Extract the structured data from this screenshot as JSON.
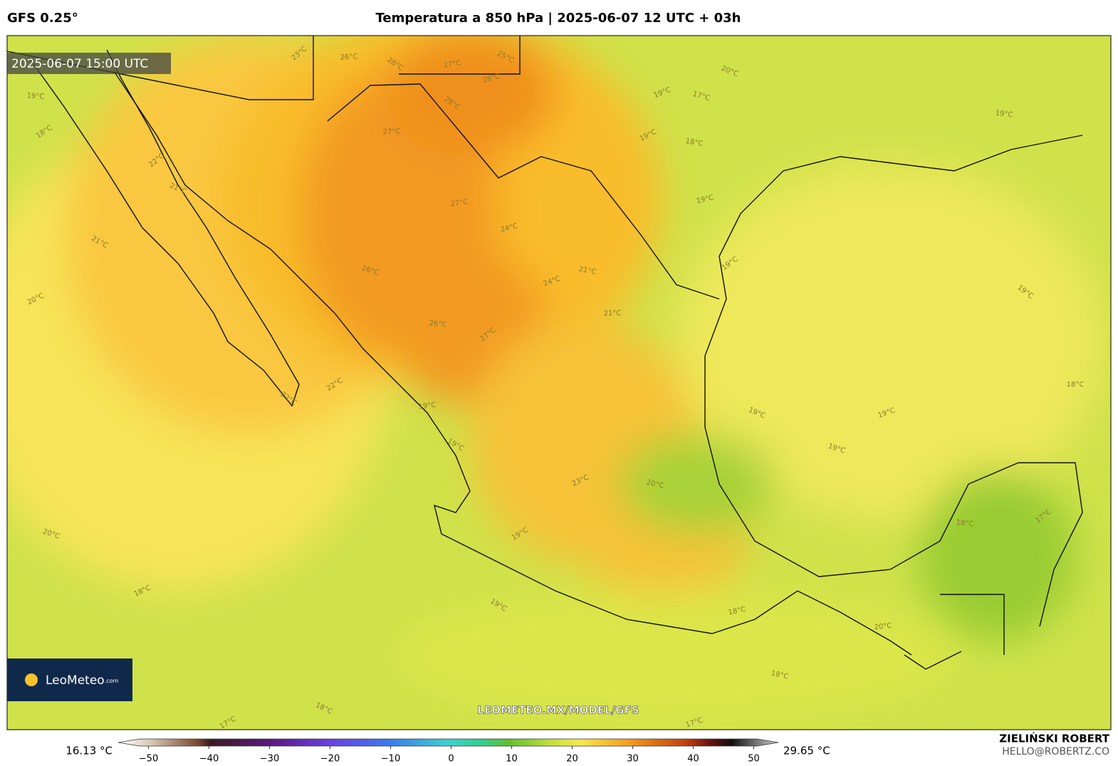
{
  "header": {
    "model": "GFS 0.25°",
    "title": "Temperatura a 850 hPa | 2025-06-07 12 UTC + 03h"
  },
  "map": {
    "valid_time": "2025-06-07 15:00 UTC",
    "watermark": "LEOMETEO.MX/MODEL/GFS",
    "contour_labels": [
      "23°C",
      "26°C",
      "28°C",
      "27°C",
      "25°C",
      "28°C",
      "20°C",
      "19°C",
      "17°C",
      "19°C",
      "18°C",
      "18°C",
      "19°C",
      "22°C",
      "27°C",
      "28°C",
      "27°C",
      "21°C",
      "24°C",
      "21°C",
      "24°C",
      "26°C",
      "20°C",
      "21°C",
      "22°C",
      "26°C",
      "27°C",
      "21°C",
      "22°C",
      "19°C",
      "19°C",
      "19°C",
      "19°C",
      "19°C",
      "19°C",
      "23°C",
      "20°C",
      "19°C",
      "18°C",
      "17°C",
      "18°C",
      "19°C",
      "20°C",
      "19°C",
      "18°C",
      "18°C",
      "17°C",
      "20°C",
      "18°C",
      "18°C",
      "17°C",
      "19°C",
      "19°C"
    ]
  },
  "logo": {
    "name": "LeoMeteo",
    "suffix": ".com"
  },
  "colorbar": {
    "min_label": "16.13 °C",
    "max_label": "29.65 °C",
    "range": [
      -55,
      55
    ],
    "ticks": [
      {
        "value": -50,
        "label": "−50"
      },
      {
        "value": -40,
        "label": "−40"
      },
      {
        "value": -30,
        "label": "−30"
      },
      {
        "value": -20,
        "label": "−20"
      },
      {
        "value": -10,
        "label": "−10"
      },
      0,
      10,
      20,
      30,
      40,
      50
    ]
  },
  "footer": {
    "author": "ZIELIŃSKI ROBERT",
    "email": "HELLO@ROBERTZ.CO"
  }
}
